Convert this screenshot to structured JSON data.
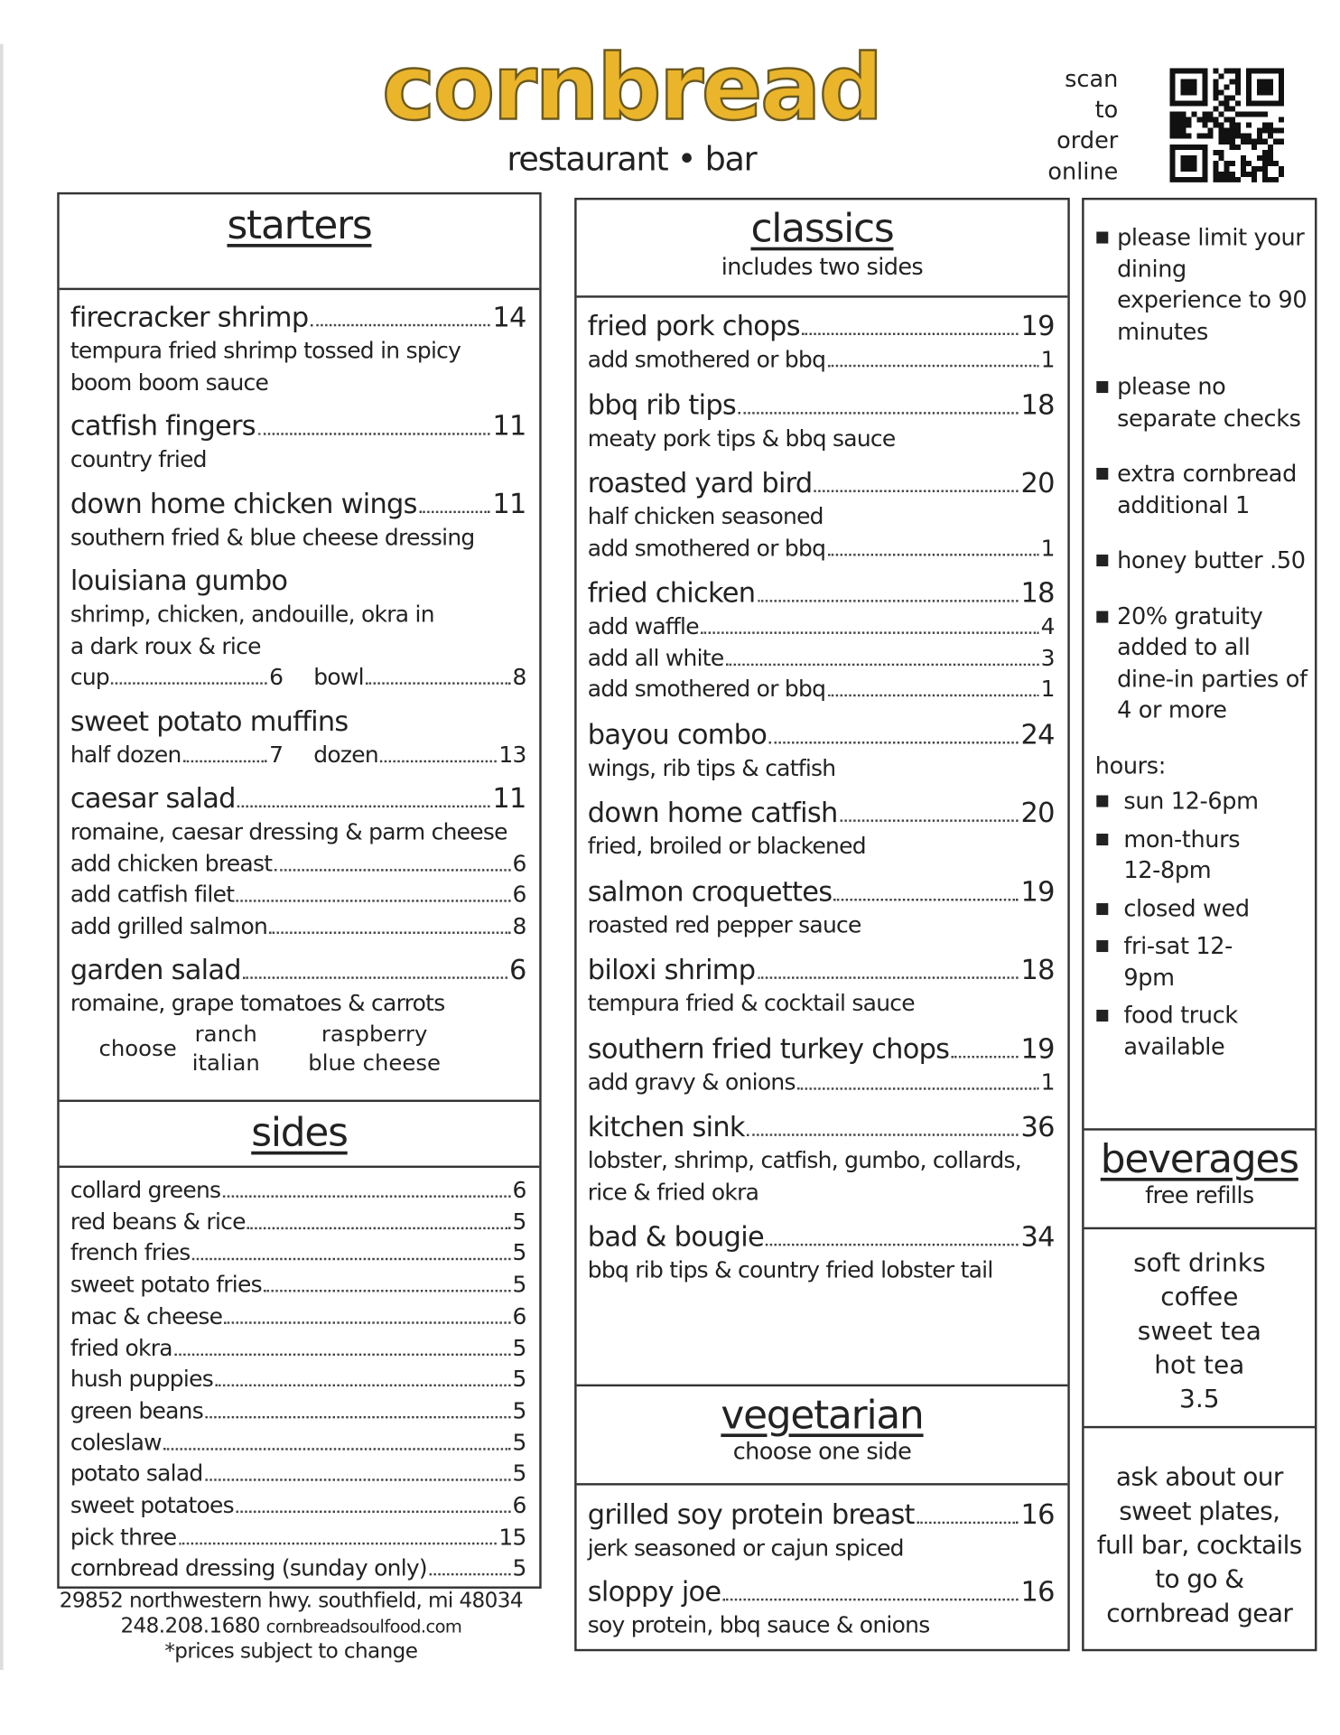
{
  "header": {
    "logo": "cornbread",
    "tagline": "restaurant • bar",
    "scan": [
      "scan",
      "to",
      "order",
      "online"
    ],
    "qr_icon": "qr-code-icon",
    "logo_color": "#ebb52b"
  },
  "starters": {
    "title": "starters",
    "groups": [
      [
        {
          "t": "lead",
          "c": "big",
          "label": "firecracker shrimp",
          "price": "14"
        },
        {
          "t": "text",
          "text": "tempura fried shrimp tossed in spicy"
        },
        {
          "t": "text",
          "text": "boom boom sauce"
        }
      ],
      [
        {
          "t": "lead",
          "c": "big",
          "label": "catfish fingers",
          "price": "11"
        },
        {
          "t": "text",
          "text": "country fried"
        }
      ],
      [
        {
          "t": "lead",
          "c": "big",
          "label": "down home chicken wings",
          "price": "11"
        },
        {
          "t": "text",
          "text": "southern fried & blue cheese dressing"
        }
      ],
      [
        {
          "t": "text",
          "c": "big",
          "text": "louisiana gumbo"
        },
        {
          "t": "text",
          "text": "shrimp, chicken, andouille, okra in"
        },
        {
          "t": "text",
          "text": "a dark roux & rice"
        },
        {
          "t": "pair",
          "items": [
            {
              "label": "cup",
              "price": "6"
            },
            {
              "label": "bowl",
              "price": "8"
            }
          ]
        }
      ],
      [
        {
          "t": "text",
          "c": "big",
          "text": "sweet potato muffins"
        },
        {
          "t": "pair",
          "items": [
            {
              "label": "half dozen",
              "price": "7"
            },
            {
              "label": "dozen",
              "price": "13"
            }
          ]
        }
      ],
      [
        {
          "t": "lead",
          "c": "big",
          "label": "caesar salad",
          "price": "11"
        },
        {
          "t": "text",
          "text": "romaine, caesar dressing & parm cheese"
        },
        {
          "t": "lead",
          "label": "add chicken breast",
          "price": "6"
        },
        {
          "t": "lead",
          "label": "add catfish filet",
          "price": "6"
        },
        {
          "t": "lead",
          "label": "add grilled salmon",
          "price": "8"
        }
      ],
      [
        {
          "t": "lead",
          "c": "big",
          "label": "garden salad",
          "price": "6"
        },
        {
          "t": "text",
          "text": "romaine, grape tomatoes & carrots"
        },
        {
          "t": "choose",
          "label": "choose",
          "cols": [
            [
              "ranch",
              "italian"
            ],
            [
              "raspberry",
              "blue cheese"
            ]
          ]
        }
      ]
    ]
  },
  "sides": {
    "title": "sides",
    "items": [
      {
        "label": "collard greens",
        "price": "6"
      },
      {
        "label": "red beans & rice",
        "price": "5"
      },
      {
        "label": "french fries",
        "price": "5"
      },
      {
        "label": "sweet potato fries",
        "price": "5"
      },
      {
        "label": "mac & cheese",
        "price": "6"
      },
      {
        "label": "fried okra",
        "price": "5"
      },
      {
        "label": "hush puppies",
        "price": "5"
      },
      {
        "label": "green beans",
        "price": "5"
      },
      {
        "label": "coleslaw",
        "price": "5"
      },
      {
        "label": "potato salad",
        "price": "5"
      },
      {
        "label": "sweet potatoes",
        "price": "6"
      },
      {
        "label": "pick three",
        "price": "15"
      },
      {
        "label": "cornbread dressing (sunday only)",
        "price": "5"
      }
    ]
  },
  "footer": {
    "address": "29852 northwestern hwy. southfield, mi 48034",
    "phone": "248.208.1680",
    "website": "cornbreadsoulfood.com",
    "note": "*prices subject to change"
  },
  "classics": {
    "title": "classics",
    "subtitle": "includes two sides",
    "groups": [
      [
        {
          "t": "lead",
          "c": "big",
          "label": "fried pork chops",
          "price": "19"
        },
        {
          "t": "lead",
          "label": "add smothered or bbq",
          "price": "1"
        }
      ],
      [
        {
          "t": "lead",
          "c": "big",
          "label": "bbq rib tips",
          "price": "18"
        },
        {
          "t": "text",
          "text": "meaty pork tips & bbq sauce"
        }
      ],
      [
        {
          "t": "lead",
          "c": "big",
          "label": "roasted yard bird",
          "price": "20"
        },
        {
          "t": "text",
          "text": "half chicken seasoned"
        },
        {
          "t": "lead",
          "label": "add smothered or bbq",
          "price": "1"
        }
      ],
      [
        {
          "t": "lead",
          "c": "big",
          "label": "fried chicken",
          "price": "18"
        },
        {
          "t": "lead",
          "label": "add waffle",
          "price": "4"
        },
        {
          "t": "lead",
          "label": "add all white",
          "price": "3"
        },
        {
          "t": "lead",
          "label": "add smothered or bbq",
          "price": "1"
        }
      ],
      [
        {
          "t": "lead",
          "c": "big",
          "label": "bayou combo",
          "price": "24"
        },
        {
          "t": "text",
          "text": "wings, rib tips & catfish"
        }
      ],
      [
        {
          "t": "lead",
          "c": "big",
          "label": "down home catfish",
          "price": "20"
        },
        {
          "t": "text",
          "text": "fried, broiled or blackened"
        }
      ],
      [
        {
          "t": "lead",
          "c": "big",
          "label": "salmon croquettes",
          "price": "19"
        },
        {
          "t": "text",
          "text": "roasted red pepper sauce"
        }
      ],
      [
        {
          "t": "lead",
          "c": "big",
          "label": "biloxi shrimp",
          "price": "18"
        },
        {
          "t": "text",
          "text": "tempura fried & cocktail sauce"
        }
      ],
      [
        {
          "t": "lead",
          "c": "big",
          "label": "southern fried turkey chops",
          "price": "19"
        },
        {
          "t": "lead",
          "label": "add gravy & onions",
          "price": "1"
        }
      ],
      [
        {
          "t": "lead",
          "c": "big",
          "label": "kitchen sink",
          "price": "36"
        },
        {
          "t": "text",
          "text": "lobster, shrimp, catfish, gumbo, collards,"
        },
        {
          "t": "text",
          "text": "rice & fried okra"
        }
      ],
      [
        {
          "t": "lead",
          "c": "big",
          "label": "bad & bougie",
          "price": "34"
        },
        {
          "t": "text",
          "text": "bbq rib tips & country fried lobster tail"
        }
      ]
    ]
  },
  "vegetarian": {
    "title": "vegetarian",
    "subtitle": "choose one side",
    "groups": [
      [
        {
          "t": "lead",
          "c": "big",
          "label": "grilled soy protein breast",
          "price": "16"
        },
        {
          "t": "text",
          "text": "jerk seasoned or cajun spiced"
        }
      ],
      [
        {
          "t": "lead",
          "c": "big",
          "label": "sloppy joe",
          "price": "16"
        },
        {
          "t": "text",
          "text": "soy protein, bbq sauce & onions"
        }
      ]
    ]
  },
  "notes": {
    "items": [
      "please limit your dining experience to 90 minutes",
      "please no separate checks",
      "extra cornbread additional 1",
      "honey butter .50",
      "20% gratuity added to all dine-in parties of 4 or more"
    ],
    "hours_label": "hours:",
    "hours": [
      "sun 12-6pm",
      "mon-thurs 12-8pm",
      "closed wed",
      "fri-sat 12-9pm",
      "food truck available"
    ]
  },
  "beverages": {
    "title": "beverages",
    "subtitle": "free refills",
    "items": [
      "soft drinks",
      "coffee",
      "sweet tea",
      "hot tea",
      "3.5"
    ]
  },
  "promo": {
    "lines": [
      "ask about our",
      "sweet plates,",
      "full bar, cocktails",
      "to go &",
      "cornbread gear"
    ]
  }
}
